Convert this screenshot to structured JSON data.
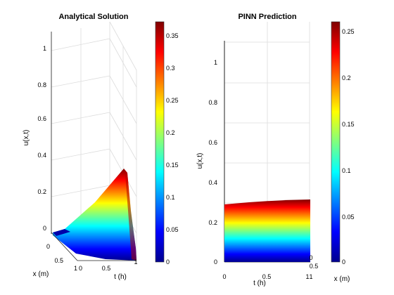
{
  "chart_data": [
    {
      "type": "surface",
      "title": "Analytical Solution",
      "xlabel": "x (m)",
      "ylabel": "t (h)",
      "zlabel": "u(x,t)",
      "xlim": [
        0,
        1
      ],
      "ylim": [
        0,
        1
      ],
      "zlim": [
        0,
        1
      ],
      "x_ticks": [
        "0",
        "0.5",
        "1"
      ],
      "y_ticks": [
        "0",
        "0.5",
        "1"
      ],
      "z_ticks": [
        "0",
        "0.2",
        "0.4",
        "0.6",
        "0.8",
        "1"
      ],
      "boundary_u_at_x0": {
        "t": [
          0,
          0.1,
          0.2,
          0.3,
          0.4,
          0.5,
          0.6,
          0.7,
          0.8,
          0.9,
          0.95,
          1.0
        ],
        "u": [
          0,
          0.01,
          0.05,
          0.09,
          0.13,
          0.18,
          0.22,
          0.27,
          0.31,
          0.35,
          0.37,
          0.34
        ]
      },
      "colormap": "jet",
      "colorbar": {
        "min": 0,
        "max": 0.37,
        "ticks": [
          "0",
          "0.05",
          "0.1",
          "0.15",
          "0.2",
          "0.25",
          "0.3",
          "0.35"
        ]
      }
    },
    {
      "type": "surface",
      "title": "PINN Prediction",
      "xlabel": "x (m)",
      "ylabel": "t (h)",
      "zlabel": "u(x,t)",
      "xlim": [
        0,
        1
      ],
      "ylim": [
        0,
        1
      ],
      "zlim": [
        0,
        1.1
      ],
      "x_ticks": [
        "0",
        "0.5",
        "1"
      ],
      "t_ticks": [
        "0",
        "0.5",
        "1"
      ],
      "z_ticks": [
        "0",
        "0.2",
        "0.4",
        "0.6",
        "0.8",
        "1"
      ],
      "top_edge": {
        "t": [
          0,
          0.5,
          1
        ],
        "u": [
          0.29,
          0.3,
          0.31
        ]
      },
      "colormap": "jet",
      "colorbar": {
        "min": 0,
        "max": 0.26,
        "ticks": [
          "0",
          "0.05",
          "0.1",
          "0.15",
          "0.2",
          "0.25"
        ]
      }
    }
  ]
}
